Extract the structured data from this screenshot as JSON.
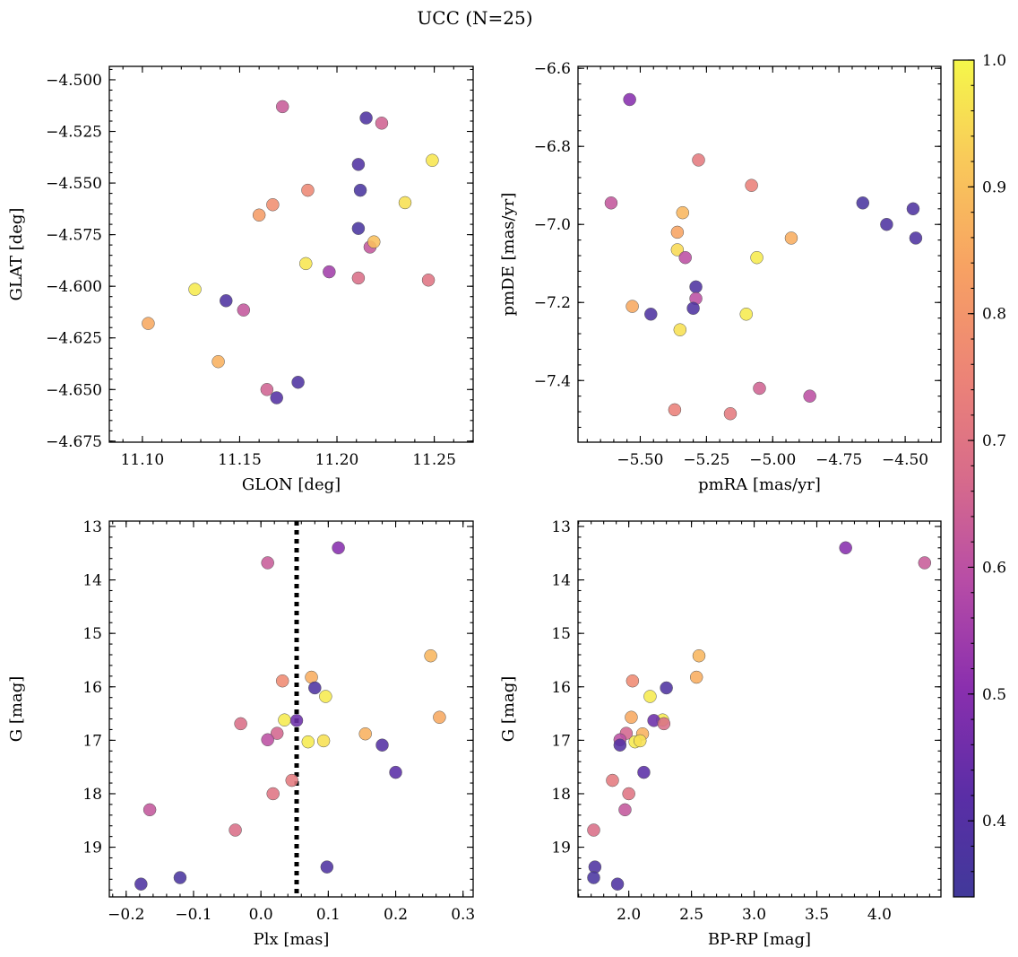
{
  "figure": {
    "title": "UCC (N=25)"
  },
  "colorbar": {
    "range": [
      0.34,
      1.0
    ],
    "ticks": [
      0.4,
      0.5,
      0.6,
      0.7,
      0.8,
      0.9,
      1.0
    ],
    "tick_labels": [
      "0.4",
      "0.5",
      "0.6",
      "0.7",
      "0.8",
      "0.9",
      "1.0"
    ],
    "colormap": "plasma"
  },
  "chart_data": [
    {
      "type": "scatter",
      "xlabel": "GLON [deg]",
      "ylabel": "GLAT [deg]",
      "xlim": [
        11.083,
        11.27
      ],
      "ylim": [
        -4.6755,
        -4.4935
      ],
      "xticks": [
        11.1,
        11.15,
        11.2,
        11.25
      ],
      "xtick_labels": [
        "11.10",
        "11.15",
        "11.20",
        "11.25"
      ],
      "yticks": [
        -4.5,
        -4.525,
        -4.55,
        -4.575,
        -4.6,
        -4.625,
        -4.65,
        -4.675
      ],
      "ytick_labels": [
        "−4.500",
        "−4.525",
        "−4.550",
        "−4.575",
        "−4.600",
        "−4.625",
        "−4.650",
        "−4.675"
      ],
      "x": [
        11.103,
        11.127,
        11.139,
        11.143,
        11.152,
        11.16,
        11.164,
        11.167,
        11.169,
        11.172,
        11.18,
        11.184,
        11.185,
        11.196,
        11.211,
        11.211,
        11.211,
        11.212,
        11.215,
        11.217,
        11.219,
        11.223,
        11.235,
        11.247,
        11.249
      ],
      "y": [
        -4.618,
        -4.6015,
        -4.6365,
        -4.607,
        -4.6115,
        -4.5655,
        -4.65,
        -4.5605,
        -4.654,
        -4.513,
        -4.6465,
        -4.589,
        -4.5535,
        -4.593,
        -4.541,
        -4.572,
        -4.596,
        -4.5535,
        -4.5185,
        -4.581,
        -4.5785,
        -4.521,
        -4.5595,
        -4.597,
        -4.539
      ],
      "color_values": [
        0.85,
        0.98,
        0.87,
        0.38,
        0.62,
        0.82,
        0.65,
        0.78,
        0.4,
        0.63,
        0.38,
        0.97,
        0.76,
        0.55,
        0.39,
        0.37,
        0.68,
        0.37,
        0.38,
        0.62,
        0.9,
        0.65,
        0.96,
        0.7,
        0.97
      ]
    },
    {
      "type": "scatter",
      "xlabel": "pmRA [mas/yr]",
      "ylabel": "pmDE [mas/yr]",
      "xlim": [
        -5.735,
        -4.365
      ],
      "ylim": [
        -7.558,
        -6.595
      ],
      "xticks": [
        -5.5,
        -5.25,
        -5.0,
        -4.75,
        -4.5
      ],
      "xtick_labels": [
        "−5.50",
        "−5.25",
        "−5.00",
        "−4.75",
        "−4.50"
      ],
      "yticks": [
        -6.6,
        -6.8,
        -7.0,
        -7.2,
        -7.4
      ],
      "ytick_labels": [
        "−6.6",
        "−6.8",
        "−7.0",
        "−7.2",
        "−7.4"
      ],
      "x": [
        -5.54,
        -5.61,
        -5.28,
        -5.08,
        -5.34,
        -5.36,
        -5.36,
        -5.33,
        -5.53,
        -5.46,
        -5.29,
        -5.29,
        -5.3,
        -5.35,
        -5.06,
        -5.1,
        -4.93,
        -4.66,
        -4.57,
        -4.47,
        -4.46,
        -5.37,
        -5.16,
        -5.05,
        -4.86
      ],
      "y": [
        -6.68,
        -6.945,
        -6.835,
        -6.9,
        -6.97,
        -7.02,
        -7.065,
        -7.085,
        -7.21,
        -7.23,
        -7.16,
        -7.19,
        -7.215,
        -7.27,
        -7.085,
        -7.23,
        -7.035,
        -6.945,
        -7.0,
        -6.96,
        -7.035,
        -7.475,
        -7.485,
        -7.42,
        -7.44
      ],
      "color_values": [
        0.5,
        0.62,
        0.72,
        0.74,
        0.88,
        0.84,
        0.95,
        0.6,
        0.85,
        0.38,
        0.38,
        0.6,
        0.38,
        0.96,
        0.98,
        0.98,
        0.86,
        0.37,
        0.38,
        0.38,
        0.38,
        0.74,
        0.72,
        0.65,
        0.6
      ]
    },
    {
      "type": "scatter",
      "xlabel": "Plx [mas]",
      "ylabel": "G [mag]",
      "xlim": [
        -0.225,
        0.315
      ],
      "ylim": [
        19.93,
        12.9
      ],
      "x_reference_line": 0.053,
      "xticks": [
        -0.2,
        -0.1,
        0.0,
        0.1,
        0.2,
        0.3
      ],
      "xtick_labels": [
        "−0.2",
        "−0.1",
        "0.0",
        "0.1",
        "0.2",
        "0.3"
      ],
      "yticks": [
        13,
        14,
        15,
        16,
        17,
        18,
        19
      ],
      "ytick_labels": [
        "13",
        "14",
        "15",
        "16",
        "17",
        "18",
        "19"
      ],
      "x": [
        0.115,
        0.01,
        0.252,
        0.075,
        0.032,
        0.08,
        0.096,
        0.265,
        0.035,
        0.053,
        -0.03,
        0.155,
        0.024,
        0.01,
        0.07,
        0.093,
        0.18,
        0.2,
        0.046,
        0.018,
        -0.165,
        -0.038,
        0.098,
        -0.12,
        -0.178
      ],
      "y": [
        13.4,
        13.68,
        15.42,
        15.82,
        15.89,
        16.02,
        16.18,
        16.57,
        16.62,
        16.63,
        16.69,
        16.88,
        16.87,
        16.99,
        17.03,
        17.01,
        17.09,
        17.6,
        17.75,
        18.0,
        18.3,
        18.68,
        19.37,
        19.57,
        19.69
      ],
      "color_values": [
        0.5,
        0.63,
        0.88,
        0.86,
        0.77,
        0.38,
        0.98,
        0.85,
        0.98,
        0.45,
        0.68,
        0.87,
        0.66,
        0.6,
        0.98,
        0.96,
        0.4,
        0.42,
        0.72,
        0.7,
        0.62,
        0.68,
        0.38,
        0.37,
        0.38
      ]
    },
    {
      "type": "scatter",
      "xlabel": "BP-RP [mag]",
      "ylabel": "G [mag]",
      "xlim": [
        1.595,
        4.49
      ],
      "ylim": [
        19.93,
        12.9
      ],
      "xticks": [
        2.0,
        2.5,
        3.0,
        3.5,
        4.0
      ],
      "xtick_labels": [
        "2.0",
        "2.5",
        "3.0",
        "3.5",
        "4.0"
      ],
      "yticks": [
        13,
        14,
        15,
        16,
        17,
        18,
        19
      ],
      "ytick_labels": [
        "13",
        "14",
        "15",
        "16",
        "17",
        "18",
        "19"
      ],
      "x": [
        3.73,
        4.36,
        2.56,
        2.54,
        2.03,
        2.3,
        2.17,
        2.02,
        2.27,
        2.2,
        2.28,
        2.11,
        1.98,
        1.93,
        2.05,
        2.09,
        1.93,
        2.12,
        1.87,
        2.0,
        1.97,
        1.72,
        1.73,
        1.72,
        1.91
      ],
      "y": [
        13.4,
        13.68,
        15.42,
        15.82,
        15.89,
        16.02,
        16.18,
        16.57,
        16.62,
        16.63,
        16.69,
        16.88,
        16.87,
        16.99,
        17.03,
        17.01,
        17.09,
        17.6,
        17.75,
        18.0,
        18.3,
        18.68,
        19.37,
        19.57,
        19.69
      ],
      "color_values": [
        0.5,
        0.63,
        0.88,
        0.86,
        0.77,
        0.38,
        0.98,
        0.85,
        0.98,
        0.45,
        0.68,
        0.87,
        0.66,
        0.6,
        0.98,
        0.96,
        0.4,
        0.42,
        0.72,
        0.7,
        0.62,
        0.68,
        0.38,
        0.37,
        0.38
      ]
    }
  ]
}
